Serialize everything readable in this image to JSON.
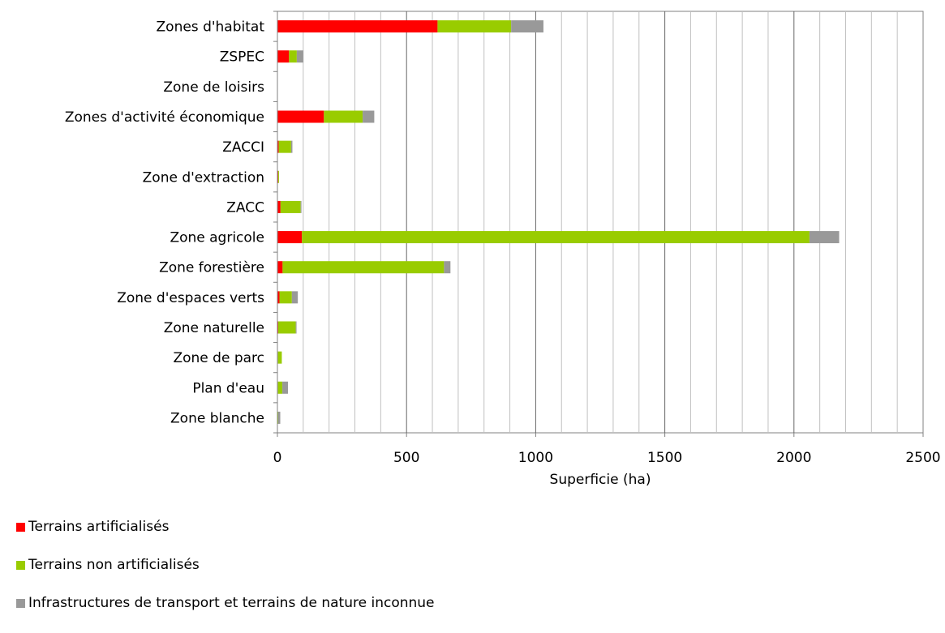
{
  "chart_data": {
    "type": "bar",
    "orientation": "horizontal",
    "stacked": true,
    "categories": [
      "Zones d'habitat",
      "ZSPEC",
      "Zone de loisirs",
      "Zones d'activité économique",
      "ZACCI",
      "Zone d'extraction",
      "ZACC",
      "Zone agricole",
      "Zone forestière",
      "Zone d'espaces verts",
      "Zone naturelle",
      "Zone de parc",
      "Plan d'eau",
      "Zone blanche"
    ],
    "series": [
      {
        "name": "Terrains artificialisés",
        "color": "#ff0000",
        "values": [
          620,
          45,
          0,
          180,
          5,
          3,
          12,
          95,
          20,
          8,
          3,
          2,
          2,
          0
        ]
      },
      {
        "name": "Terrains non artificialisés",
        "color": "#99cc00",
        "values": [
          285,
          30,
          0,
          150,
          48,
          3,
          78,
          1965,
          625,
          48,
          68,
          15,
          17,
          3
        ]
      },
      {
        "name": "Infrastructures de transport et terrains de nature inconnue",
        "color": "#999999",
        "values": [
          125,
          25,
          0,
          45,
          5,
          0,
          3,
          115,
          25,
          23,
          3,
          0,
          22,
          8
        ]
      }
    ],
    "xlabel": "Superficie (ha)",
    "ylabel": "",
    "xlim": [
      0,
      2500
    ],
    "xticks": [
      0,
      500,
      1000,
      1500,
      2000,
      2500
    ],
    "minor_grid_step": 100,
    "grid": true,
    "legend_position": "bottom-left"
  }
}
